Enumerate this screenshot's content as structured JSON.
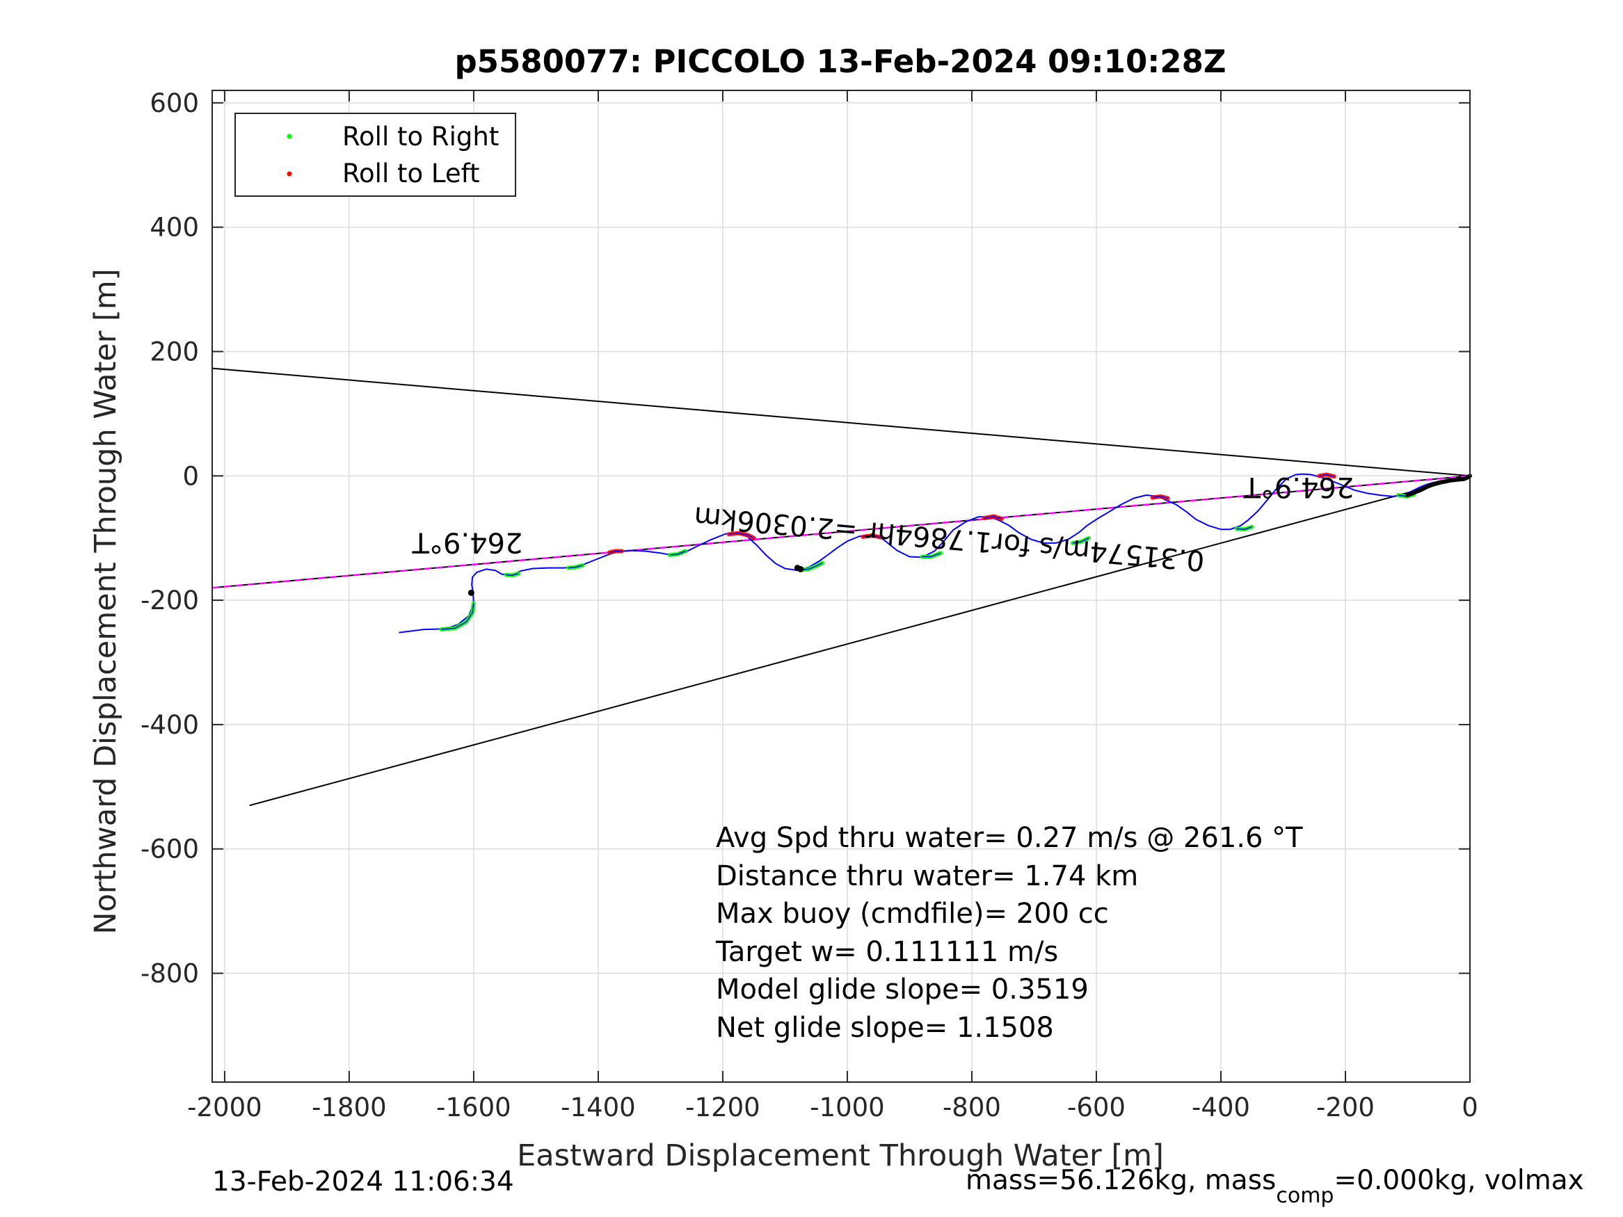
{
  "chart_data": {
    "type": "line",
    "title": "p5580077: PICCOLO 13-Feb-2024 09:10:28Z",
    "xlabel": "Eastward Displacement Through Water [m]",
    "ylabel": "Northward Displacement Through Water [m]",
    "xlim": [
      -2020,
      0
    ],
    "ylim": [
      -975,
      620
    ],
    "xticks": [
      -2000,
      -1800,
      -1600,
      -1400,
      -1200,
      -1000,
      -800,
      -600,
      -400,
      -200,
      0
    ],
    "yticks": [
      600,
      400,
      200,
      0,
      -200,
      -400,
      -600,
      -800
    ],
    "grid": true,
    "legend": {
      "position": "top-left",
      "entries": [
        {
          "label": "Roll to Right",
          "color": "#00ff00"
        },
        {
          "label": "Roll to Left",
          "color": "#ff0000"
        }
      ]
    },
    "series": [
      {
        "style": "track",
        "color": "#0000ff",
        "x": [
          -1720,
          -1680,
          -1645,
          -1625,
          -1608,
          -1600,
          -1601,
          -1603,
          -1602,
          -1595,
          -1580,
          -1565,
          -1555,
          -1540,
          -1525,
          -1505,
          -1480,
          -1455,
          -1440,
          -1425,
          -1405,
          -1385,
          -1370,
          -1350,
          -1325,
          -1300,
          -1280,
          -1265,
          -1245,
          -1220,
          -1195,
          -1175,
          -1160,
          -1145,
          -1130,
          -1115,
          -1100,
          -1080,
          -1062,
          -1045,
          -1030,
          -1015,
          -1000,
          -980,
          -960,
          -945,
          -935,
          -920,
          -900,
          -880,
          -860,
          -845,
          -830,
          -810,
          -790,
          -770,
          -755,
          -740,
          -725,
          -705,
          -685,
          -665,
          -645,
          -628,
          -615,
          -600,
          -580,
          -560,
          -540,
          -520,
          -500,
          -488,
          -472,
          -455,
          -440,
          -420,
          -400,
          -385,
          -368,
          -355,
          -340,
          -325,
          -310,
          -295,
          -280,
          -268,
          -255,
          -240,
          -228,
          -215,
          -200,
          -185,
          -165,
          -145,
          -125,
          -110,
          -98,
          -90,
          -80,
          -70,
          -60,
          -50,
          -40,
          -30,
          -20,
          -10,
          -5,
          0
        ],
        "y": [
          -252,
          -247,
          -246,
          -239,
          -225,
          -205,
          -188,
          -175,
          -163,
          -155,
          -150,
          -152,
          -158,
          -160,
          -153,
          -149,
          -148,
          -148,
          -147,
          -143,
          -135,
          -127,
          -122,
          -120,
          -121,
          -124,
          -128,
          -125,
          -115,
          -103,
          -93,
          -92,
          -98,
          -112,
          -128,
          -141,
          -149,
          -152,
          -147,
          -137,
          -126,
          -115,
          -105,
          -97,
          -96,
          -100,
          -108,
          -120,
          -130,
          -131,
          -121,
          -105,
          -87,
          -74,
          -66,
          -66,
          -72,
          -80,
          -91,
          -102,
          -108,
          -108,
          -102,
          -91,
          -80,
          -70,
          -58,
          -46,
          -36,
          -31,
          -33,
          -39,
          -46,
          -58,
          -70,
          -80,
          -86,
          -86,
          -80,
          -70,
          -56,
          -38,
          -20,
          -5,
          2,
          3,
          2,
          -2,
          -6,
          -11,
          -17,
          -23,
          -28,
          -31,
          -33,
          -32,
          -27,
          -23,
          -18,
          -14,
          -11,
          -9,
          -7,
          -6,
          -6,
          -5,
          -3,
          0
        ]
      },
      {
        "style": "reference-line",
        "color": "#000000",
        "x": [
          -2020,
          0
        ],
        "y": [
          173,
          0
        ]
      },
      {
        "style": "reference-line",
        "color": "#000000",
        "x": [
          -1960,
          0
        ],
        "y": [
          -530,
          0
        ]
      },
      {
        "style": "reference-line",
        "color": "#000000",
        "x": [
          -2020,
          0
        ],
        "y": [
          -180,
          0
        ]
      },
      {
        "style": "dashed-heading",
        "color": "#ff00ff",
        "x": [
          -2020,
          0
        ],
        "y": [
          -180,
          0
        ]
      }
    ],
    "roll_right_segments": [
      {
        "x": [
          -1652,
          -1630,
          -1612,
          -1602,
          -1600
        ],
        "y": [
          -247,
          -245,
          -235,
          -220,
          -205
        ]
      },
      {
        "x": [
          -1548,
          -1538,
          -1528
        ],
        "y": [
          -159,
          -160,
          -157
        ]
      },
      {
        "x": [
          -1448,
          -1437,
          -1425
        ],
        "y": [
          -148,
          -147,
          -144
        ]
      },
      {
        "x": [
          -1285,
          -1273,
          -1260
        ],
        "y": [
          -127,
          -126,
          -121
        ]
      },
      {
        "x": [
          -1072,
          -1062,
          -1050,
          -1040
        ],
        "y": [
          -151,
          -150,
          -145,
          -140
        ]
      },
      {
        "x": [
          -880,
          -865,
          -850
        ],
        "y": [
          -130,
          -130,
          -124
        ]
      },
      {
        "x": [
          -638,
          -625,
          -612
        ],
        "y": [
          -108,
          -106,
          -100
        ]
      },
      {
        "x": [
          -375,
          -362,
          -350
        ],
        "y": [
          -85,
          -86,
          -82
        ]
      },
      {
        "x": [
          -115,
          -102,
          -90
        ],
        "y": [
          -31,
          -33,
          -30
        ]
      }
    ],
    "roll_left_segments": [
      {
        "x": [
          -1382,
          -1372,
          -1362
        ],
        "y": [
          -123,
          -121,
          -121
        ]
      },
      {
        "x": [
          -1190,
          -1175,
          -1160,
          -1150
        ],
        "y": [
          -94,
          -92,
          -95,
          -100
        ]
      },
      {
        "x": [
          -975,
          -960,
          -945
        ],
        "y": [
          -98,
          -96,
          -99
        ]
      },
      {
        "x": [
          -780,
          -765,
          -752
        ],
        "y": [
          -68,
          -65,
          -69
        ]
      },
      {
        "x": [
          -510,
          -497,
          -485
        ],
        "y": [
          -35,
          -33,
          -36
        ]
      },
      {
        "x": [
          -242,
          -230,
          -218
        ],
        "y": [
          0,
          2,
          -1
        ]
      }
    ],
    "dive_markers": {
      "color": "#000000",
      "x": [
        -1604,
        -1075,
        -1080
      ],
      "y": [
        -188,
        -150,
        -148
      ]
    },
    "surface_markers": {
      "color": "#000000",
      "x": [
        -100,
        -90,
        -80,
        -70,
        -60,
        -50,
        -40,
        -30,
        -20,
        -10,
        -5,
        0
      ],
      "y": [
        -31,
        -27,
        -23,
        -18,
        -14,
        -11,
        -9,
        -7,
        -6,
        -5,
        -3,
        0
      ]
    },
    "annotations": [
      {
        "text": "264.9°T",
        "x": -1610,
        "y": -92,
        "rotation": 180
      },
      {
        "text": "264.9°T",
        "x": -275,
        "y": -3,
        "rotation": 180
      },
      {
        "text": "0.31574m/s for1.7864hr =2.0306km",
        "x": -835,
        "y": -86,
        "rotation": 185
      }
    ],
    "stats": [
      "Avg Spd thru water=  0.27 m/s @ 261.6 °T",
      "Distance thru water=  1.74 km",
      "Max buoy (cmdfile)= 200 cc",
      "Target w= 0.111111 m/s",
      "Model glide slope= 0.3519",
      "Net glide slope= 1.1508"
    ]
  },
  "footer": {
    "timestamp": "13-Feb-2024 11:06:34",
    "mass_prefix": "mass=56.126kg, mass",
    "mass_sub": "comp",
    "mass_suffix": "=0.000kg, volmax"
  }
}
